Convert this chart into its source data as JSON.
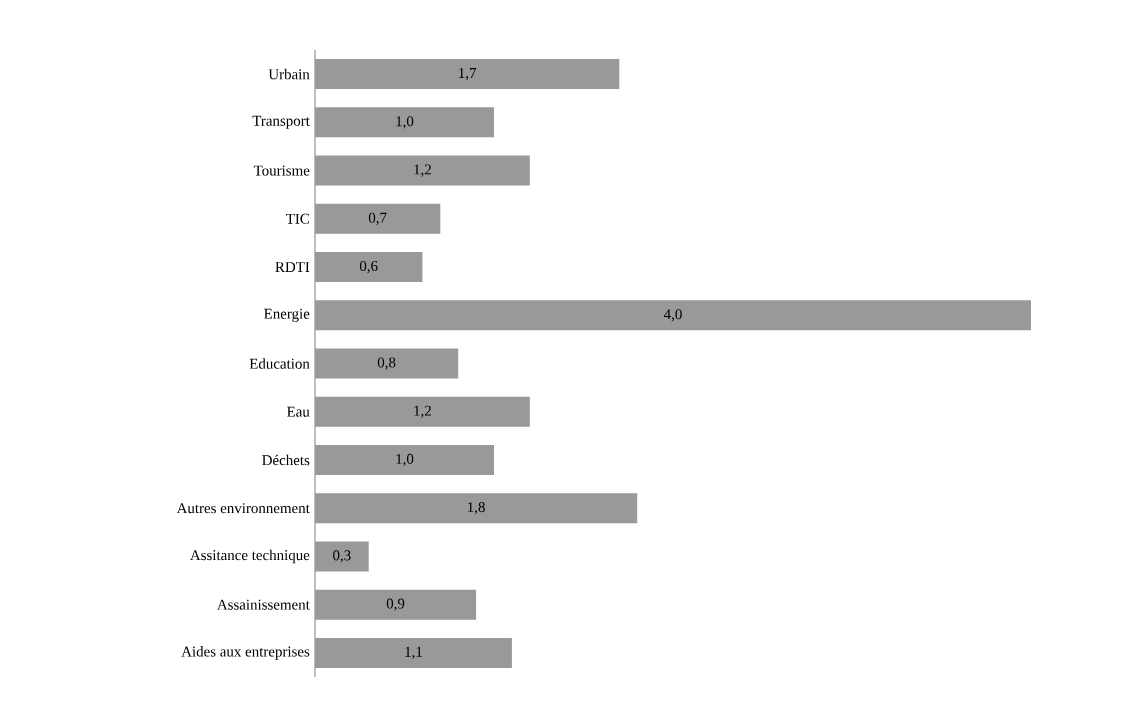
{
  "chart_data": {
    "type": "bar",
    "orientation": "horizontal",
    "categories": [
      "Urbain",
      "Transport",
      "Tourisme",
      "TIC",
      "RDTI",
      "Energie",
      "Education",
      "Eau",
      "Déchets",
      "Autres environnement",
      "Assitance technique",
      "Assainissement",
      "Aides aux entreprises"
    ],
    "values": [
      1.7,
      1.0,
      1.2,
      0.7,
      0.6,
      4.0,
      0.8,
      1.2,
      1.0,
      1.8,
      0.3,
      0.9,
      1.1
    ],
    "value_labels": [
      "1,7",
      "1,0",
      "1,2",
      "0,7",
      "0,6",
      "4,0",
      "0,8",
      "1,2",
      "1,0",
      "1,8",
      "0,3",
      "0,9",
      "1,1"
    ],
    "color": "#999999"
  }
}
